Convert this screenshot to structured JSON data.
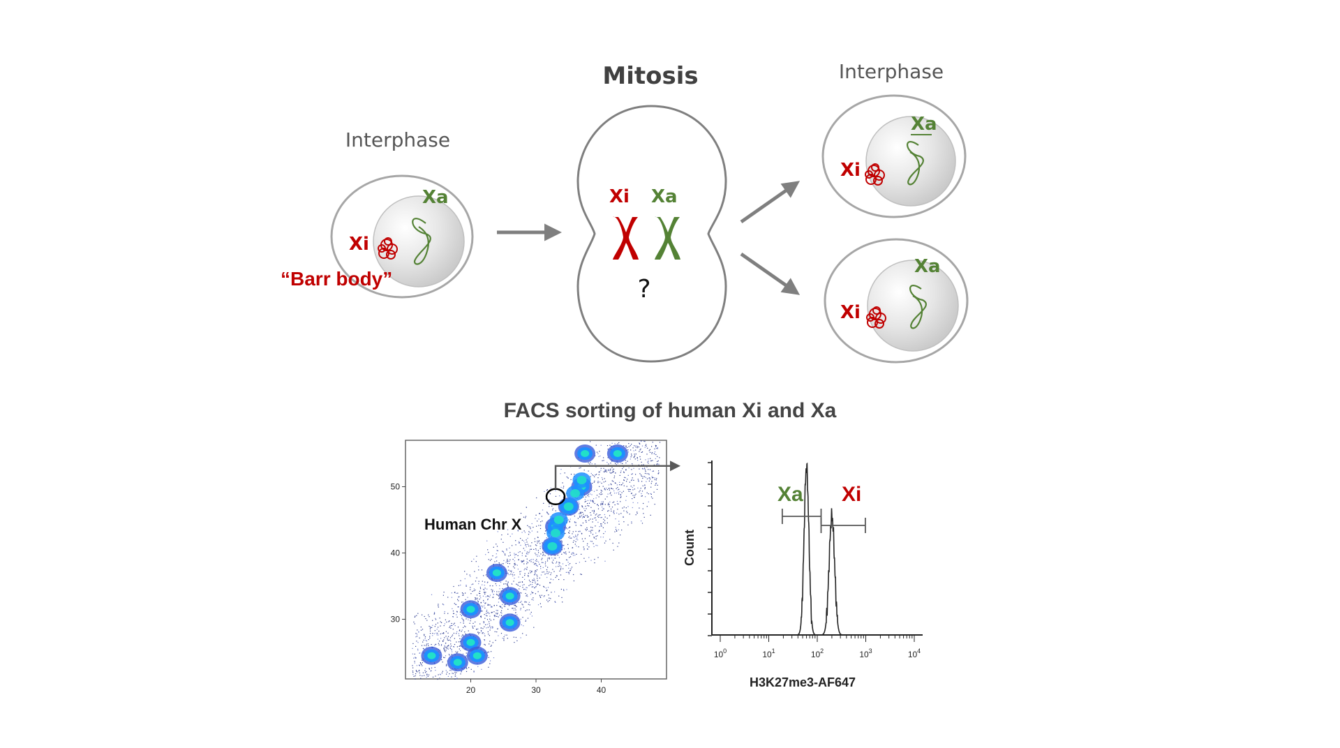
{
  "diagram": {
    "left_cell": {
      "phase_label": "Interphase",
      "xi_label": "Xi",
      "xa_label": "Xa",
      "barr_label": "“Barr body”"
    },
    "mitosis_cell": {
      "title": "Mitosis",
      "xi_label": "Xi",
      "xa_label": "Xa",
      "question": "?"
    },
    "right_top_cell": {
      "phase_label": "Interphase",
      "xi_label": "Xi",
      "xa_label": "Xa"
    },
    "right_bottom_cell": {
      "xi_label": "Xi",
      "xa_label": "Xa"
    },
    "colors": {
      "xi": "#c00000",
      "xa": "#548235",
      "arrow": "#7f7f7f",
      "nucleus": "#d9d9d9"
    }
  },
  "facs": {
    "title": "FACS sorting of human Xi and Xa",
    "scatter_label": "Human Chr X",
    "scatter_x_ticks": [
      "20",
      "30",
      "40"
    ],
    "scatter_y_ticks": [
      "30",
      "40",
      "50"
    ],
    "histogram": {
      "xa_label": "Xa",
      "xi_label": "Xi",
      "y_label": "Count",
      "x_label": "H3K27me3-AF647",
      "x_ticks": [
        {
          "base": "10",
          "exp": "0"
        },
        {
          "base": "10",
          "exp": "1"
        },
        {
          "base": "10",
          "exp": "2"
        },
        {
          "base": "10",
          "exp": "3"
        },
        {
          "base": "10",
          "exp": "4"
        }
      ]
    }
  },
  "chart_data": [
    {
      "type": "scatter",
      "xlim": [
        10,
        50
      ],
      "ylim": [
        21,
        57
      ],
      "x_ticks": [
        20,
        30,
        40
      ],
      "y_ticks": [
        30,
        40,
        50
      ],
      "clusters": [
        {
          "x": 14,
          "y": 24.5
        },
        {
          "x": 18,
          "y": 23.5
        },
        {
          "x": 20,
          "y": 26.5
        },
        {
          "x": 21,
          "y": 24.5
        },
        {
          "x": 20,
          "y": 31.5
        },
        {
          "x": 24,
          "y": 37
        },
        {
          "x": 26,
          "y": 33.5
        },
        {
          "x": 26,
          "y": 29.5
        },
        {
          "x": 32.5,
          "y": 41
        },
        {
          "x": 33,
          "y": 44
        },
        {
          "x": 35,
          "y": 47
        },
        {
          "x": 37,
          "y": 50
        },
        {
          "x": 37.5,
          "y": 55
        },
        {
          "x": 42.5,
          "y": 55
        }
      ],
      "gated_cluster": {
        "x": 33,
        "y": 48.5,
        "label": "Human Chr X"
      }
    },
    {
      "type": "line",
      "x_scale": "log",
      "xlim": [
        1,
        10000
      ],
      "xlabel": "H3K27me3-AF647",
      "ylabel": "Count",
      "peaks": [
        {
          "name": "Xa",
          "x": 60
        },
        {
          "name": "Xi",
          "x": 200
        }
      ],
      "gates": [
        {
          "name": "Xa",
          "range": [
            19,
            120
          ]
        },
        {
          "name": "Xi",
          "range": [
            120,
            980
          ]
        }
      ]
    }
  ]
}
